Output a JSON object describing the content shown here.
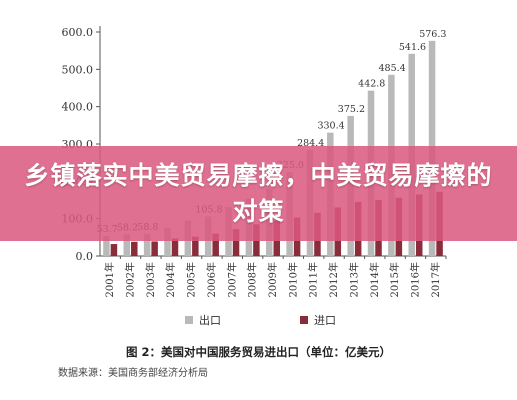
{
  "banner": {
    "headline": "乡镇落实中美贸易摩擦，中美贸易摩擦的对策"
  },
  "caption": "图 2：美国对中国服务贸易进出口（单位：亿美元）",
  "source": "数据来源：美国商务部经济分析局",
  "colors": {
    "export": "#b9b9b9",
    "import": "#8b2c3b",
    "axis": "#555555",
    "grid": "#dddddd",
    "banner": "#db5880"
  },
  "chart_data": {
    "type": "bar",
    "title": "",
    "xlabel": "",
    "ylabel": "",
    "ylim": [
      0,
      600
    ],
    "yticks": [
      "0.0",
      "100.0",
      "200.0",
      "300.0",
      "400.0",
      "500.0",
      "600.0"
    ],
    "categories": [
      "2001年",
      "2002年",
      "2003年",
      "2004年",
      "2005年",
      "2006年",
      "2007年",
      "2008年",
      "2009年",
      "2010年",
      "2011年",
      "2012年",
      "2013年",
      "2014年",
      "2015年",
      "2016年",
      "2017年"
    ],
    "series": [
      {
        "name": "出口",
        "values": [
          53.7,
          58.2,
          58.8,
          76.1,
          95.0,
          105.8,
          131.0,
          154.0,
          180.0,
          225.0,
          284.4,
          330.4,
          375.2,
          442.8,
          485.4,
          541.6,
          576.3
        ],
        "labels": [
          "53.7",
          "58.2",
          "58.8",
          "",
          "",
          "105.8",
          "",
          "",
          "",
          "225.0",
          "284.4",
          "330.4",
          "375.2",
          "442.8",
          "485.4",
          "541.6",
          "576.3"
        ]
      },
      {
        "name": "进口",
        "values": [
          32.0,
          38.0,
          39.0,
          47.0,
          52.0,
          60.0,
          72.0,
          85.0,
          94.0,
          103.0,
          116.0,
          130.0,
          145.0,
          150.0,
          156.0,
          165.0,
          172.0
        ],
        "labels": []
      }
    ],
    "legend_position": "bottom",
    "grid": false
  }
}
